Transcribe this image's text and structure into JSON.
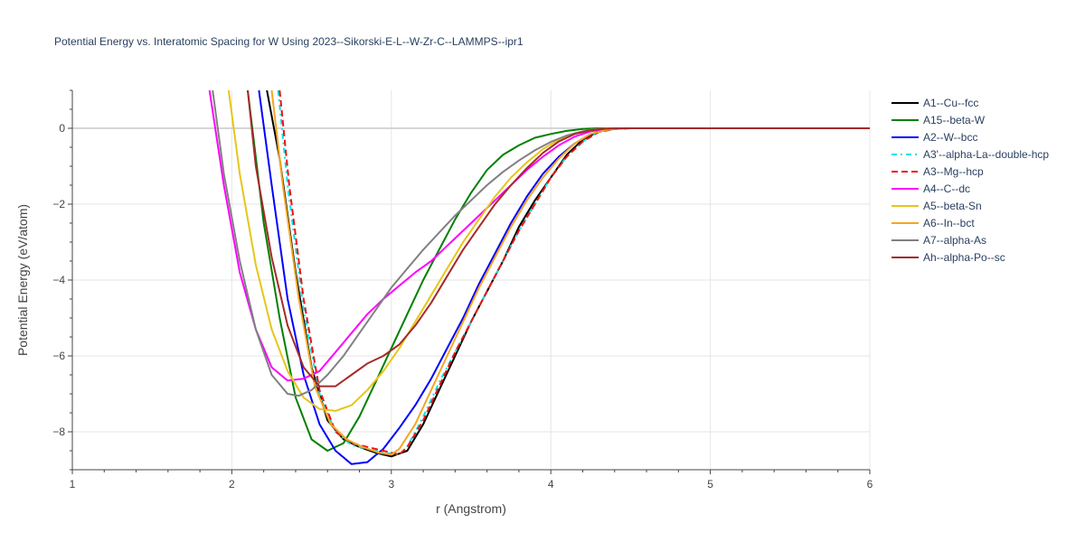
{
  "chart_data": {
    "type": "line",
    "title": "Potential Energy vs. Interatomic Spacing for W Using 2023--Sikorski-E-L--W-Zr-C--LAMMPS--ipr1",
    "xlabel": "r (Angstrom)",
    "ylabel": "Potential Energy (eV/atom)",
    "xlim": [
      1,
      6
    ],
    "ylim": [
      -9,
      1
    ],
    "x_ticks": [
      1,
      2,
      3,
      4,
      5,
      6
    ],
    "y_ticks": [
      0,
      -2,
      -4,
      -6,
      -8
    ],
    "x_tick_labels": [
      "1",
      "2",
      "3",
      "4",
      "5",
      "6"
    ],
    "y_tick_labels": [
      "0",
      "−2",
      "−4",
      "−6",
      "−8"
    ],
    "grid": true,
    "legend_position": "right",
    "series": [
      {
        "name": "A1--Cu--fcc",
        "color": "#000000",
        "dash": "solid",
        "points": [
          [
            2.22,
            1.0
          ],
          [
            2.3,
            -0.8
          ],
          [
            2.4,
            -3.8
          ],
          [
            2.5,
            -6.3
          ],
          [
            2.6,
            -7.7
          ],
          [
            2.7,
            -8.2
          ],
          [
            2.8,
            -8.4
          ],
          [
            2.9,
            -8.55
          ],
          [
            3.0,
            -8.65
          ],
          [
            3.1,
            -8.5
          ],
          [
            3.2,
            -7.8
          ],
          [
            3.3,
            -6.9
          ],
          [
            3.4,
            -6.0
          ],
          [
            3.5,
            -5.1
          ],
          [
            3.6,
            -4.3
          ],
          [
            3.7,
            -3.5
          ],
          [
            3.8,
            -2.6
          ],
          [
            3.9,
            -1.9
          ],
          [
            4.0,
            -1.3
          ],
          [
            4.1,
            -0.7
          ],
          [
            4.2,
            -0.3
          ],
          [
            4.3,
            -0.08
          ],
          [
            4.4,
            -0.01
          ],
          [
            4.5,
            0
          ],
          [
            5.0,
            0
          ],
          [
            6.0,
            0
          ]
        ]
      },
      {
        "name": "A15--beta-W",
        "color": "#008000",
        "dash": "solid",
        "points": [
          [
            2.1,
            1.0
          ],
          [
            2.2,
            -2.5
          ],
          [
            2.3,
            -5.0
          ],
          [
            2.4,
            -7.1
          ],
          [
            2.5,
            -8.2
          ],
          [
            2.6,
            -8.5
          ],
          [
            2.7,
            -8.3
          ],
          [
            2.8,
            -7.6
          ],
          [
            2.9,
            -6.7
          ],
          [
            3.0,
            -5.8
          ],
          [
            3.1,
            -4.9
          ],
          [
            3.2,
            -4.0
          ],
          [
            3.3,
            -3.2
          ],
          [
            3.4,
            -2.4
          ],
          [
            3.5,
            -1.7
          ],
          [
            3.6,
            -1.1
          ],
          [
            3.7,
            -0.7
          ],
          [
            3.8,
            -0.45
          ],
          [
            3.9,
            -0.25
          ],
          [
            4.0,
            -0.15
          ],
          [
            4.1,
            -0.07
          ],
          [
            4.2,
            -0.02
          ],
          [
            4.3,
            0
          ],
          [
            5.0,
            0
          ],
          [
            6.0,
            0
          ]
        ]
      },
      {
        "name": "A2--W--bcc",
        "color": "#0000ff",
        "dash": "solid",
        "points": [
          [
            2.17,
            1.0
          ],
          [
            2.25,
            -1.5
          ],
          [
            2.35,
            -4.5
          ],
          [
            2.45,
            -6.5
          ],
          [
            2.55,
            -7.8
          ],
          [
            2.65,
            -8.5
          ],
          [
            2.75,
            -8.85
          ],
          [
            2.85,
            -8.8
          ],
          [
            2.95,
            -8.45
          ],
          [
            3.05,
            -7.9
          ],
          [
            3.15,
            -7.3
          ],
          [
            3.25,
            -6.6
          ],
          [
            3.35,
            -5.8
          ],
          [
            3.45,
            -5.0
          ],
          [
            3.55,
            -4.1
          ],
          [
            3.65,
            -3.3
          ],
          [
            3.75,
            -2.5
          ],
          [
            3.85,
            -1.8
          ],
          [
            3.95,
            -1.2
          ],
          [
            4.05,
            -0.75
          ],
          [
            4.15,
            -0.4
          ],
          [
            4.25,
            -0.15
          ],
          [
            4.35,
            -0.04
          ],
          [
            4.45,
            0
          ],
          [
            5.0,
            0
          ],
          [
            6.0,
            0
          ]
        ]
      },
      {
        "name": "A3'--alpha-La--double-hcp",
        "color": "#00e5e5",
        "dash": "6,4,2,4",
        "points": [
          [
            2.29,
            1.0
          ],
          [
            2.35,
            -1.5
          ],
          [
            2.45,
            -4.8
          ],
          [
            2.55,
            -7.0
          ],
          [
            2.65,
            -8.0
          ],
          [
            2.75,
            -8.35
          ],
          [
            2.85,
            -8.45
          ],
          [
            2.95,
            -8.55
          ],
          [
            3.05,
            -8.6
          ],
          [
            3.1,
            -8.4
          ],
          [
            3.2,
            -7.6
          ],
          [
            3.3,
            -6.7
          ],
          [
            3.4,
            -5.9
          ],
          [
            3.5,
            -5.1
          ],
          [
            3.6,
            -4.3
          ],
          [
            3.7,
            -3.5
          ],
          [
            3.8,
            -2.7
          ],
          [
            3.9,
            -2.0
          ],
          [
            4.0,
            -1.3
          ],
          [
            4.1,
            -0.75
          ],
          [
            4.2,
            -0.35
          ],
          [
            4.3,
            -0.1
          ],
          [
            4.4,
            -0.02
          ],
          [
            4.5,
            0
          ],
          [
            5.0,
            0
          ],
          [
            6.0,
            0
          ]
        ]
      },
      {
        "name": "A3--Mg--hcp",
        "color": "#ee1111",
        "dash": "7,4",
        "points": [
          [
            2.3,
            1.0
          ],
          [
            2.36,
            -1.5
          ],
          [
            2.45,
            -4.5
          ],
          [
            2.55,
            -6.9
          ],
          [
            2.65,
            -8.0
          ],
          [
            2.75,
            -8.3
          ],
          [
            2.85,
            -8.4
          ],
          [
            2.95,
            -8.5
          ],
          [
            3.05,
            -8.6
          ],
          [
            3.1,
            -8.4
          ],
          [
            3.2,
            -7.7
          ],
          [
            3.3,
            -6.8
          ],
          [
            3.4,
            -5.9
          ],
          [
            3.5,
            -5.1
          ],
          [
            3.6,
            -4.3
          ],
          [
            3.7,
            -3.5
          ],
          [
            3.8,
            -2.7
          ],
          [
            3.9,
            -2.0
          ],
          [
            4.0,
            -1.3
          ],
          [
            4.1,
            -0.75
          ],
          [
            4.2,
            -0.35
          ],
          [
            4.3,
            -0.1
          ],
          [
            4.4,
            -0.02
          ],
          [
            4.5,
            0
          ],
          [
            5.0,
            0
          ],
          [
            6.0,
            0
          ]
        ]
      },
      {
        "name": "A4--C--dc",
        "color": "#ff00ff",
        "dash": "solid",
        "points": [
          [
            1.86,
            1.0
          ],
          [
            1.95,
            -1.5
          ],
          [
            2.05,
            -3.8
          ],
          [
            2.15,
            -5.3
          ],
          [
            2.25,
            -6.3
          ],
          [
            2.35,
            -6.65
          ],
          [
            2.45,
            -6.6
          ],
          [
            2.55,
            -6.4
          ],
          [
            2.65,
            -5.9
          ],
          [
            2.75,
            -5.4
          ],
          [
            2.85,
            -4.9
          ],
          [
            2.95,
            -4.5
          ],
          [
            3.05,
            -4.15
          ],
          [
            3.15,
            -3.8
          ],
          [
            3.25,
            -3.5
          ],
          [
            3.35,
            -3.1
          ],
          [
            3.45,
            -2.7
          ],
          [
            3.55,
            -2.3
          ],
          [
            3.65,
            -1.9
          ],
          [
            3.75,
            -1.5
          ],
          [
            3.85,
            -1.1
          ],
          [
            3.95,
            -0.75
          ],
          [
            4.05,
            -0.45
          ],
          [
            4.15,
            -0.22
          ],
          [
            4.25,
            -0.08
          ],
          [
            4.35,
            -0.02
          ],
          [
            4.45,
            0
          ],
          [
            5.0,
            0
          ],
          [
            6.0,
            0
          ]
        ]
      },
      {
        "name": "A5--beta-Sn",
        "color": "#e6c619",
        "dash": "solid",
        "points": [
          [
            1.98,
            1.0
          ],
          [
            2.05,
            -1.2
          ],
          [
            2.15,
            -3.6
          ],
          [
            2.25,
            -5.3
          ],
          [
            2.35,
            -6.4
          ],
          [
            2.45,
            -7.1
          ],
          [
            2.55,
            -7.4
          ],
          [
            2.65,
            -7.45
          ],
          [
            2.75,
            -7.3
          ],
          [
            2.85,
            -6.9
          ],
          [
            2.95,
            -6.4
          ],
          [
            3.05,
            -5.8
          ],
          [
            3.15,
            -5.1
          ],
          [
            3.25,
            -4.4
          ],
          [
            3.35,
            -3.7
          ],
          [
            3.45,
            -3.0
          ],
          [
            3.55,
            -2.4
          ],
          [
            3.65,
            -1.8
          ],
          [
            3.75,
            -1.3
          ],
          [
            3.85,
            -0.9
          ],
          [
            3.95,
            -0.55
          ],
          [
            4.05,
            -0.3
          ],
          [
            4.15,
            -0.13
          ],
          [
            4.25,
            -0.04
          ],
          [
            4.35,
            0
          ],
          [
            5.0,
            0
          ],
          [
            6.0,
            0
          ]
        ]
      },
      {
        "name": "A6--In--bct",
        "color": "#f5a623",
        "dash": "solid",
        "points": [
          [
            2.25,
            1.0
          ],
          [
            2.32,
            -1.5
          ],
          [
            2.42,
            -4.5
          ],
          [
            2.52,
            -6.8
          ],
          [
            2.62,
            -7.8
          ],
          [
            2.72,
            -8.2
          ],
          [
            2.82,
            -8.4
          ],
          [
            2.92,
            -8.55
          ],
          [
            3.0,
            -8.6
          ],
          [
            3.05,
            -8.45
          ],
          [
            3.15,
            -7.8
          ],
          [
            3.25,
            -6.9
          ],
          [
            3.35,
            -6.0
          ],
          [
            3.45,
            -5.1
          ],
          [
            3.55,
            -4.2
          ],
          [
            3.65,
            -3.4
          ],
          [
            3.75,
            -2.6
          ],
          [
            3.85,
            -1.9
          ],
          [
            3.95,
            -1.3
          ],
          [
            4.05,
            -0.8
          ],
          [
            4.15,
            -0.4
          ],
          [
            4.25,
            -0.15
          ],
          [
            4.35,
            -0.04
          ],
          [
            4.45,
            0
          ],
          [
            5.0,
            0
          ],
          [
            6.0,
            0
          ]
        ]
      },
      {
        "name": "A7--alpha-As",
        "color": "#808080",
        "dash": "solid",
        "points": [
          [
            1.88,
            1.0
          ],
          [
            1.95,
            -1.2
          ],
          [
            2.05,
            -3.5
          ],
          [
            2.15,
            -5.3
          ],
          [
            2.25,
            -6.5
          ],
          [
            2.35,
            -7.0
          ],
          [
            2.42,
            -7.05
          ],
          [
            2.5,
            -6.9
          ],
          [
            2.6,
            -6.5
          ],
          [
            2.7,
            -6.0
          ],
          [
            2.8,
            -5.4
          ],
          [
            2.9,
            -4.8
          ],
          [
            3.0,
            -4.2
          ],
          [
            3.1,
            -3.7
          ],
          [
            3.2,
            -3.2
          ],
          [
            3.3,
            -2.75
          ],
          [
            3.4,
            -2.3
          ],
          [
            3.5,
            -1.9
          ],
          [
            3.6,
            -1.5
          ],
          [
            3.7,
            -1.15
          ],
          [
            3.8,
            -0.85
          ],
          [
            3.9,
            -0.58
          ],
          [
            4.0,
            -0.36
          ],
          [
            4.1,
            -0.19
          ],
          [
            4.2,
            -0.08
          ],
          [
            4.3,
            -0.02
          ],
          [
            4.4,
            0
          ],
          [
            5.0,
            0
          ],
          [
            6.0,
            0
          ]
        ]
      },
      {
        "name": "Ah--alpha-Po--sc",
        "color": "#a52a2a",
        "dash": "solid",
        "points": [
          [
            2.1,
            1.0
          ],
          [
            2.15,
            -1.0
          ],
          [
            2.25,
            -3.4
          ],
          [
            2.35,
            -5.2
          ],
          [
            2.45,
            -6.3
          ],
          [
            2.55,
            -6.8
          ],
          [
            2.65,
            -6.8
          ],
          [
            2.75,
            -6.5
          ],
          [
            2.85,
            -6.2
          ],
          [
            2.95,
            -6.0
          ],
          [
            3.05,
            -5.7
          ],
          [
            3.15,
            -5.2
          ],
          [
            3.25,
            -4.6
          ],
          [
            3.35,
            -3.9
          ],
          [
            3.45,
            -3.2
          ],
          [
            3.55,
            -2.6
          ],
          [
            3.65,
            -2.0
          ],
          [
            3.75,
            -1.5
          ],
          [
            3.85,
            -1.05
          ],
          [
            3.95,
            -0.65
          ],
          [
            4.05,
            -0.35
          ],
          [
            4.15,
            -0.15
          ],
          [
            4.25,
            -0.05
          ],
          [
            4.35,
            -0.01
          ],
          [
            4.45,
            0
          ],
          [
            5.0,
            0
          ],
          [
            6.0,
            0
          ]
        ]
      }
    ]
  }
}
